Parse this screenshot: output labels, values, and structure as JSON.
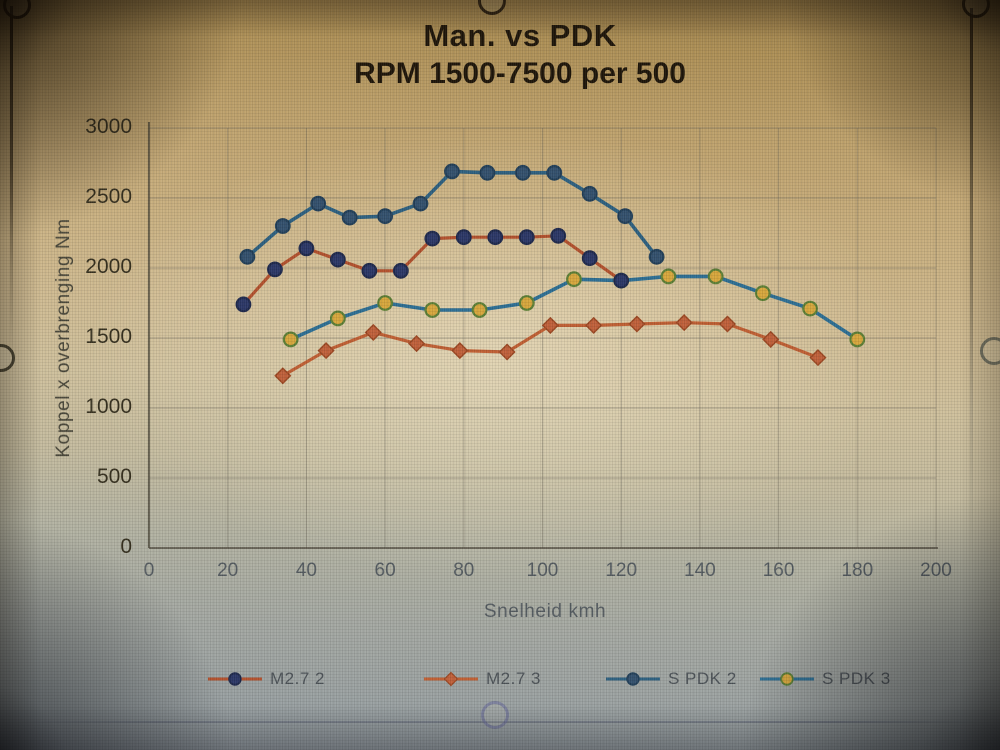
{
  "chart_data": {
    "type": "line",
    "title": "Man. vs PDK",
    "subtitle": "RPM 1500-7500 per 500",
    "xlabel": "Snelheid kmh",
    "ylabel": "Koppel x overbrenging Nm",
    "xlim": [
      0,
      200
    ],
    "ylim": [
      0,
      3000
    ],
    "xticks": [
      0,
      20,
      40,
      60,
      80,
      100,
      120,
      140,
      160,
      180,
      200
    ],
    "yticks": [
      0,
      500,
      1000,
      1500,
      2000,
      2500,
      3000
    ],
    "grid": true,
    "legend_position": "bottom",
    "series": [
      {
        "name": "M2.7 2",
        "marker": "circle",
        "line_color": "#b3512d",
        "marker_fill": "#2b3766",
        "marker_stroke": "#1f294d",
        "x": [
          24,
          32,
          40,
          48,
          56,
          64,
          72,
          80,
          88,
          96,
          104,
          112,
          120
        ],
        "y": [
          1740,
          1990,
          2140,
          2060,
          1980,
          1980,
          2210,
          2220,
          2220,
          2220,
          2230,
          2070,
          1910
        ]
      },
      {
        "name": "M2.7 3",
        "marker": "diamond",
        "line_color": "#c05f33",
        "marker_fill": "#c0603a",
        "marker_stroke": "#9c4722",
        "x": [
          34,
          45,
          57,
          68,
          79,
          91,
          102,
          113,
          124,
          136,
          147,
          158,
          170
        ],
        "y": [
          1230,
          1410,
          1540,
          1460,
          1410,
          1400,
          1590,
          1590,
          1600,
          1610,
          1600,
          1490,
          1360
        ]
      },
      {
        "name": "S PDK 2",
        "marker": "circle",
        "line_color": "#2d6080",
        "marker_fill": "#33506d",
        "marker_stroke": "#223f59",
        "x": [
          25,
          34,
          43,
          51,
          60,
          69,
          77,
          86,
          95,
          103,
          112,
          121,
          129
        ],
        "y": [
          2080,
          2300,
          2460,
          2360,
          2370,
          2460,
          2690,
          2680,
          2680,
          2680,
          2530,
          2370,
          2080
        ]
      },
      {
        "name": "S PDK 3",
        "marker": "circle",
        "line_color": "#2d6f94",
        "marker_fill": "#d7a73c",
        "marker_stroke": "#5d7f35",
        "x": [
          36,
          48,
          60,
          72,
          84,
          96,
          108,
          120,
          132,
          144,
          156,
          168,
          180
        ],
        "y": [
          1490,
          1640,
          1750,
          1700,
          1700,
          1750,
          1920,
          1910,
          1940,
          1940,
          1820,
          1710,
          1490
        ]
      }
    ]
  },
  "photo_artifacts": {
    "selection_handles": "circle-outline",
    "object_border": "thin-line"
  }
}
